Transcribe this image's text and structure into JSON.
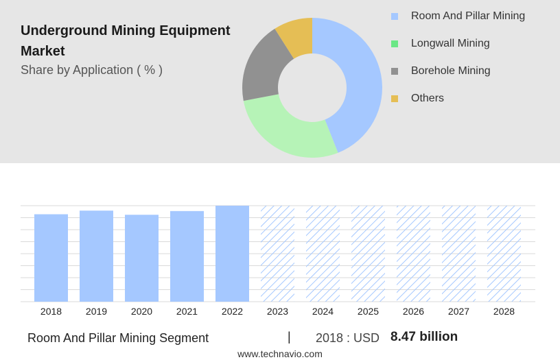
{
  "title": "Underground Mining Equipment Market",
  "subtitle": "Share by Application ( % )",
  "colors": {
    "room_and_pillar": "#a5c8ff",
    "longwall": "#b6f3b7",
    "borehole": "#919191",
    "others": "#e5be55",
    "legend_longwall": "#6be786",
    "forecast_hatch": "#a5c8ff",
    "top_panel": "#e6e6e6",
    "grid": "#d9d9d9"
  },
  "chart_data": [
    {
      "type": "pie",
      "style": "donut",
      "categories": [
        "Room And Pillar Mining",
        "Longwall Mining",
        "Borehole Mining",
        "Others"
      ],
      "values": [
        44,
        28,
        19,
        9
      ],
      "legend_position": "right"
    },
    {
      "type": "bar",
      "categories": [
        "2018",
        "2019",
        "2020",
        "2021",
        "2022",
        "2023",
        "2024",
        "2025",
        "2026",
        "2027",
        "2028"
      ],
      "values": [
        8.47,
        8.82,
        8.42,
        8.78,
        9.3,
        null,
        null,
        null,
        null,
        null,
        null
      ],
      "forecast_categories": [
        "2023",
        "2024",
        "2025",
        "2026",
        "2027",
        "2028"
      ],
      "ylim": [
        0,
        9.3
      ],
      "grid": true,
      "xlabel": "",
      "ylabel": ""
    }
  ],
  "footer": {
    "segment": "Room And Pillar Mining Segment",
    "separator": "|",
    "year_label": "2018 : USD",
    "value": "8.47 billion"
  },
  "source": "www.technavio.com"
}
